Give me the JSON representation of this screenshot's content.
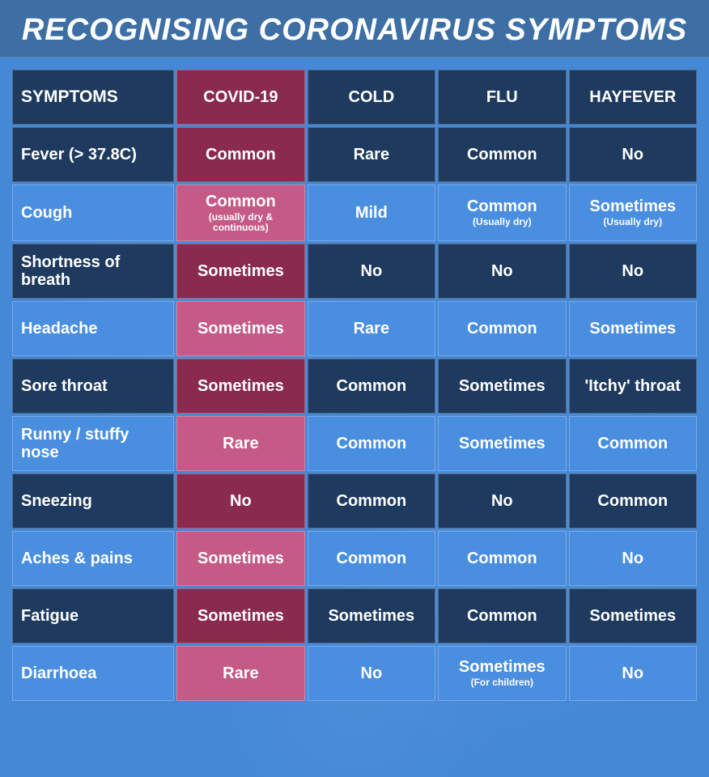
{
  "title": "RECOGNISING CORONAVIRUS SYMPTOMS",
  "colors": {
    "page_bg": "#4488d6",
    "title_bg": "#3d6fa5",
    "text": "#ffffff",
    "dark_blue": "#1e3a5f",
    "light_blue": "#4a8ee0",
    "covid_dark": "#8a2a4f",
    "covid_light": "#c45a85",
    "border": "rgba(255,255,255,0.25)"
  },
  "table": {
    "columns": [
      {
        "label": "SYMPTOMS",
        "header_bg": "#1e3a5f"
      },
      {
        "label": "COVID-19",
        "header_bg": "#8a2a4f"
      },
      {
        "label": "COLD",
        "header_bg": "#1e3a5f"
      },
      {
        "label": "FLU",
        "header_bg": "#1e3a5f"
      },
      {
        "label": "HAYFEVER",
        "header_bg": "#1e3a5f"
      }
    ],
    "rows": [
      {
        "symptom": "Fever (> 37.8C)",
        "sym_bg": "#1e3a5f",
        "cells": [
          {
            "main": "Common",
            "sub": "",
            "bg": "#8a2a4f"
          },
          {
            "main": "Rare",
            "sub": "",
            "bg": "#1e3a5f"
          },
          {
            "main": "Common",
            "sub": "",
            "bg": "#1e3a5f"
          },
          {
            "main": "No",
            "sub": "",
            "bg": "#1e3a5f"
          }
        ]
      },
      {
        "symptom": "Cough",
        "sym_bg": "#4a8ee0",
        "cells": [
          {
            "main": "Common",
            "sub": "(usually dry & continuous)",
            "bg": "#c45a85"
          },
          {
            "main": "Mild",
            "sub": "",
            "bg": "#4a8ee0"
          },
          {
            "main": "Common",
            "sub": "(Usually dry)",
            "bg": "#4a8ee0"
          },
          {
            "main": "Sometimes",
            "sub": "(Usually dry)",
            "bg": "#4a8ee0"
          }
        ]
      },
      {
        "symptom": "Shortness of breath",
        "sym_bg": "#1e3a5f",
        "cells": [
          {
            "main": "Sometimes",
            "sub": "",
            "bg": "#8a2a4f"
          },
          {
            "main": "No",
            "sub": "",
            "bg": "#1e3a5f"
          },
          {
            "main": "No",
            "sub": "",
            "bg": "#1e3a5f"
          },
          {
            "main": "No",
            "sub": "",
            "bg": "#1e3a5f"
          }
        ]
      },
      {
        "symptom": "Headache",
        "sym_bg": "#4a8ee0",
        "cells": [
          {
            "main": "Sometimes",
            "sub": "",
            "bg": "#c45a85"
          },
          {
            "main": "Rare",
            "sub": "",
            "bg": "#4a8ee0"
          },
          {
            "main": "Common",
            "sub": "",
            "bg": "#4a8ee0"
          },
          {
            "main": "Sometimes",
            "sub": "",
            "bg": "#4a8ee0"
          }
        ]
      },
      {
        "symptom": "Sore throat",
        "sym_bg": "#1e3a5f",
        "cells": [
          {
            "main": "Sometimes",
            "sub": "",
            "bg": "#8a2a4f"
          },
          {
            "main": "Common",
            "sub": "",
            "bg": "#1e3a5f"
          },
          {
            "main": "Sometimes",
            "sub": "",
            "bg": "#1e3a5f"
          },
          {
            "main": "'Itchy' throat",
            "sub": "",
            "bg": "#1e3a5f"
          }
        ]
      },
      {
        "symptom": "Runny / stuffy nose",
        "sym_bg": "#4a8ee0",
        "cells": [
          {
            "main": "Rare",
            "sub": "",
            "bg": "#c45a85"
          },
          {
            "main": "Common",
            "sub": "",
            "bg": "#4a8ee0"
          },
          {
            "main": "Sometimes",
            "sub": "",
            "bg": "#4a8ee0"
          },
          {
            "main": "Common",
            "sub": "",
            "bg": "#4a8ee0"
          }
        ]
      },
      {
        "symptom": "Sneezing",
        "sym_bg": "#1e3a5f",
        "cells": [
          {
            "main": "No",
            "sub": "",
            "bg": "#8a2a4f"
          },
          {
            "main": "Common",
            "sub": "",
            "bg": "#1e3a5f"
          },
          {
            "main": "No",
            "sub": "",
            "bg": "#1e3a5f"
          },
          {
            "main": "Common",
            "sub": "",
            "bg": "#1e3a5f"
          }
        ]
      },
      {
        "symptom": "Aches & pains",
        "sym_bg": "#4a8ee0",
        "cells": [
          {
            "main": "Sometimes",
            "sub": "",
            "bg": "#c45a85"
          },
          {
            "main": "Common",
            "sub": "",
            "bg": "#4a8ee0"
          },
          {
            "main": "Common",
            "sub": "",
            "bg": "#4a8ee0"
          },
          {
            "main": "No",
            "sub": "",
            "bg": "#4a8ee0"
          }
        ]
      },
      {
        "symptom": "Fatigue",
        "sym_bg": "#1e3a5f",
        "cells": [
          {
            "main": "Sometimes",
            "sub": "",
            "bg": "#8a2a4f"
          },
          {
            "main": "Sometimes",
            "sub": "",
            "bg": "#1e3a5f"
          },
          {
            "main": "Common",
            "sub": "",
            "bg": "#1e3a5f"
          },
          {
            "main": "Sometimes",
            "sub": "",
            "bg": "#1e3a5f"
          }
        ]
      },
      {
        "symptom": "Diarrhoea",
        "sym_bg": "#4a8ee0",
        "cells": [
          {
            "main": "Rare",
            "sub": "",
            "bg": "#c45a85"
          },
          {
            "main": "No",
            "sub": "",
            "bg": "#4a8ee0"
          },
          {
            "main": "Sometimes",
            "sub": "(For children)",
            "bg": "#4a8ee0"
          },
          {
            "main": "No",
            "sub": "",
            "bg": "#4a8ee0"
          }
        ]
      }
    ]
  }
}
